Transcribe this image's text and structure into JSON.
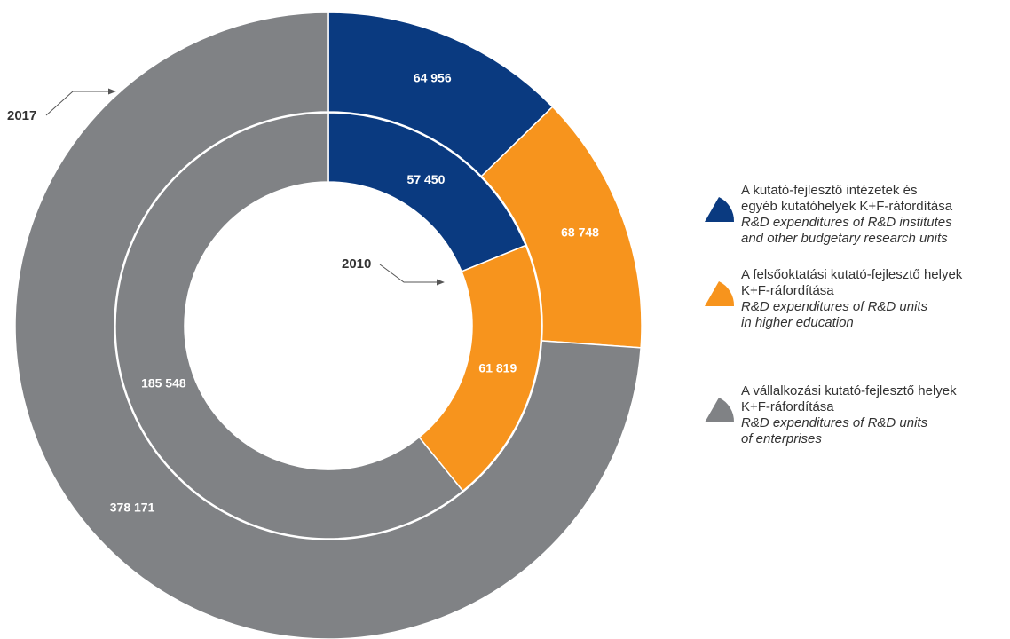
{
  "chart_data": {
    "type": "donut",
    "colors": [
      "#0a3a80",
      "#f7941d",
      "#808285"
    ],
    "rings": [
      {
        "name": "2010",
        "values": [
          57450,
          61819,
          185548
        ],
        "value_labels": [
          "57 450",
          "61 819",
          "185 548"
        ]
      },
      {
        "name": "2017",
        "values": [
          64956,
          68748,
          378171
        ],
        "value_labels": [
          "64 956",
          "68 748",
          "378 171"
        ]
      }
    ],
    "categories": [
      [
        "A kutató-fejlesztő intézetek és",
        "egyéb kutatóhelyek K+F-ráfordítása"
      ],
      [
        "A felsőoktatási kutató-fejlesztő helyek",
        "K+F-ráfordítása"
      ],
      [
        "A vállalkozási kutató-fejlesztő helyek",
        "K+F-ráfordítása"
      ]
    ],
    "categories_en": [
      [
        "R&D expenditures of R&D institutes",
        "and other budgetary research units"
      ],
      [
        "R&D expenditures of R&D units",
        "in higher education"
      ],
      [
        "R&D expenditures of R&D units",
        "of enterprises"
      ]
    ]
  }
}
